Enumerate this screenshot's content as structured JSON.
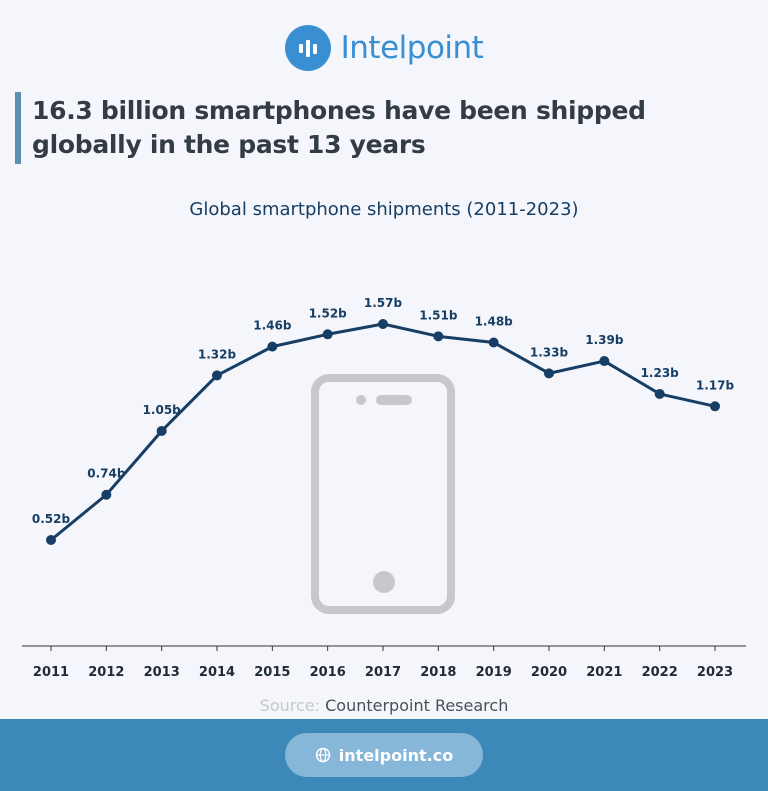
{
  "brand": {
    "name": "Intelpoint",
    "color": "#3a8fd3",
    "icon": "bar-chart-logo-icon"
  },
  "headline": "16.3 billion smartphones have been shipped globally in the past 13 years",
  "source": {
    "label": "Source:",
    "value": "Counterpoint Research"
  },
  "footer": {
    "url": "intelpoint.co",
    "icon": "globe-icon"
  },
  "illustration": {
    "icon": "smartphone-icon"
  },
  "colors": {
    "line": "#173e64",
    "footer": "#3c88b8",
    "pill": "#86b7d8"
  },
  "chart_data": {
    "type": "line",
    "title": "Global smartphone shipments (2011-2023)",
    "xlabel": "",
    "ylabel": "",
    "x": [
      "2011",
      "2012",
      "2013",
      "2014",
      "2015",
      "2016",
      "2017",
      "2018",
      "2019",
      "2020",
      "2021",
      "2022",
      "2023"
    ],
    "values": [
      0.52,
      0.74,
      1.05,
      1.32,
      1.46,
      1.52,
      1.57,
      1.51,
      1.48,
      1.33,
      1.39,
      1.23,
      1.17
    ],
    "data_labels": [
      "0.52b",
      "0.74b",
      "1.05b",
      "1.32b",
      "1.46b",
      "1.52b",
      "1.57b",
      "1.51b",
      "1.48b",
      "1.33b",
      "1.39b",
      "1.23b",
      "1.17b"
    ],
    "ylim": [
      0,
      2
    ],
    "grid": false,
    "legend": "none"
  }
}
